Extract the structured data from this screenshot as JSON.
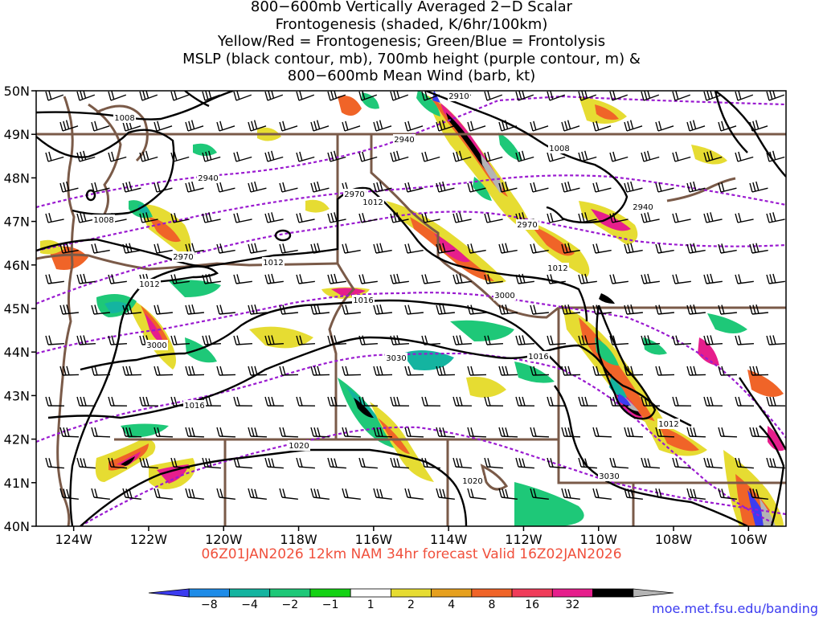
{
  "title_lines": [
    "800−600mb Vertically Averaged 2−D Scalar",
    "Frontogenesis (shaded, K/6hr/100km)",
    "Yellow/Red = Frontogenesis;  Green/Blue = Frontolysis",
    "MSLP (black contour, mb), 700mb height (purple contour, m) &",
    "800−600mb Mean Wind (barb, kt)"
  ],
  "map": {
    "lat_labels": [
      "50N",
      "49N",
      "48N",
      "47N",
      "46N",
      "45N",
      "44N",
      "43N",
      "42N",
      "41N",
      "40N"
    ],
    "lon_labels": [
      "124W",
      "122W",
      "120W",
      "118W",
      "116W",
      "114W",
      "112W",
      "110W",
      "108W",
      "106W"
    ],
    "lat_range": [
      40,
      50
    ],
    "lon_range": [
      -125,
      -105
    ],
    "mslp_contour_color": "#000000",
    "height_contour_color": "#9a1ad0",
    "border_color": "#7a5a48",
    "mslp_labels": [
      "1008",
      "1008",
      "1008",
      "1012",
      "1012",
      "1012",
      "1012",
      "1012",
      "1016",
      "1016",
      "1016",
      "1020",
      "1020"
    ],
    "height_labels": [
      "2910",
      "2940",
      "2940",
      "2940",
      "2970",
      "2970",
      "2970",
      "3000",
      "3000",
      "3030",
      "3030"
    ]
  },
  "footer": "06Z01JAN2026 12km NAM 34hr forecast Valid 16Z02JAN2026",
  "credit": "moe.met.fsu.edu/banding",
  "colorbar": {
    "labels": [
      "−8",
      "−4",
      "−2",
      "−1",
      "1",
      "2",
      "4",
      "8",
      "16",
      "32"
    ],
    "colors": [
      "#3c3cf0",
      "#1e8ce8",
      "#14b4a0",
      "#1ec878",
      "#14d214",
      "#ffffff",
      "#e6dc32",
      "#e6a01e",
      "#f06428",
      "#f03c5a",
      "#e61e8c",
      "#000000",
      "#b4b4b4"
    ]
  }
}
